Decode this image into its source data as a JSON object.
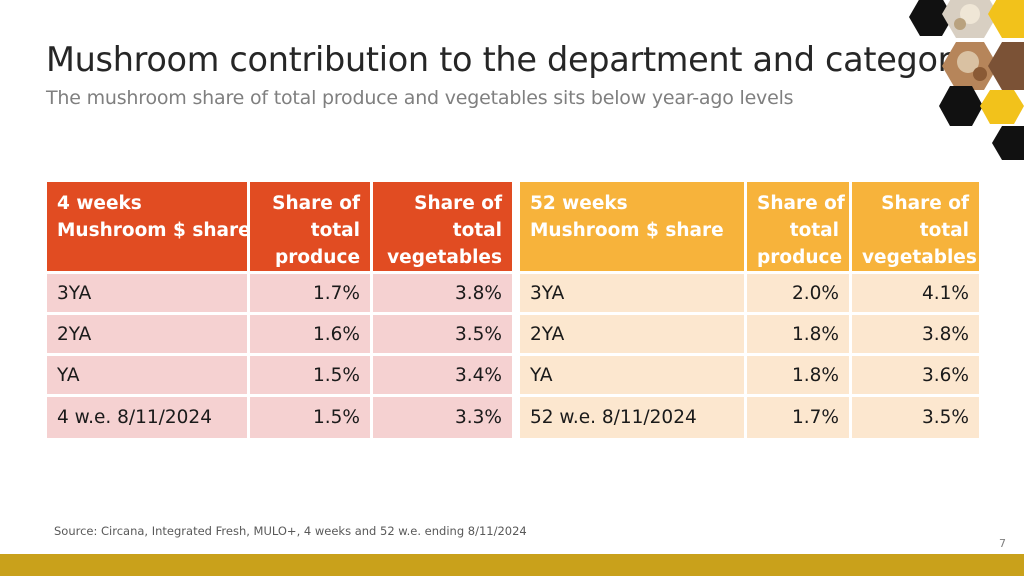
{
  "slide": {
    "title": "Mushroom contribution to the department and category",
    "subtitle": "The mushroom share of total produce and vegetables sits below year-ago levels",
    "source": "Source: Circana, Integrated Fresh, MULO+, 4 weeks and 52 w.e. ending 8/11/2024",
    "page_number": "7",
    "colors": {
      "four_week_header": "#e14c22",
      "four_week_rows": "#f5d1d1",
      "fifty_two_week_header": "#f7b33b",
      "fifty_two_week_rows": "#fce7cf",
      "footer_bar": "#c9a11b"
    },
    "decoration_icon": "mushroom-photo-hexagon-icon"
  },
  "four_weeks": {
    "header": {
      "label_line1": "4 weeks",
      "label_line2": "Mushroom $ share",
      "produce_line1": "Share of",
      "produce_line2": "total",
      "produce_line3": "produce",
      "veg_line1": "Share of",
      "veg_line2": "total",
      "veg_line3": "vegetables"
    },
    "rows": [
      {
        "label": "3YA",
        "produce": "1.7%",
        "vegetables": "3.8%"
      },
      {
        "label": "2YA",
        "produce": "1.6%",
        "vegetables": "3.5%"
      },
      {
        "label": "YA",
        "produce": "1.5%",
        "vegetables": "3.4%"
      },
      {
        "label": "4 w.e. 8/11/2024",
        "produce": "1.5%",
        "vegetables": "3.3%"
      }
    ]
  },
  "fifty_two_weeks": {
    "header": {
      "label_line1": "52 weeks",
      "label_line2": "Mushroom $ share",
      "produce_line1": "Share of",
      "produce_line2": "total",
      "produce_line3": "produce",
      "veg_line1": "Share of",
      "veg_line2": "total",
      "veg_line3": "vegetables"
    },
    "rows": [
      {
        "label": "3YA",
        "produce": "2.0%",
        "vegetables": "4.1%"
      },
      {
        "label": "2YA",
        "produce": "1.8%",
        "vegetables": "3.8%"
      },
      {
        "label": "YA",
        "produce": "1.8%",
        "vegetables": "3.6%"
      },
      {
        "label": "52 w.e. 8/11/2024",
        "produce": "1.7%",
        "vegetables": "3.5%"
      }
    ]
  }
}
